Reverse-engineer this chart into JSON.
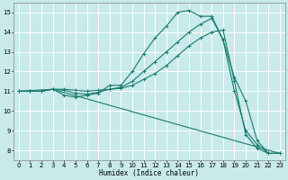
{
  "title": "",
  "xlabel": "Humidex (Indice chaleur)",
  "background_color": "#c8eaea",
  "grid_color": "#ffffff",
  "line_color": "#1a7a6e",
  "xlim": [
    -0.5,
    23.5
  ],
  "ylim": [
    7.5,
    15.5
  ],
  "xticks": [
    0,
    1,
    2,
    3,
    4,
    5,
    6,
    7,
    8,
    9,
    10,
    11,
    12,
    13,
    14,
    15,
    16,
    17,
    18,
    19,
    20,
    21,
    22,
    23
  ],
  "yticks": [
    8,
    9,
    10,
    11,
    12,
    13,
    14,
    15
  ],
  "series": [
    {
      "x": [
        0,
        1,
        2,
        3,
        4,
        5,
        6,
        7,
        8,
        9,
        10,
        11,
        12,
        13,
        14,
        15,
        16,
        17,
        18,
        19,
        20,
        21,
        22,
        23
      ],
      "y": [
        11,
        11,
        11,
        11.1,
        10.8,
        10.7,
        10.8,
        10.9,
        11.3,
        11.3,
        12.0,
        12.9,
        13.7,
        14.3,
        15.0,
        15.1,
        14.8,
        14.8,
        13.6,
        11.7,
        10.5,
        8.5,
        7.85,
        7.85
      ]
    },
    {
      "x": [
        0,
        1,
        2,
        3,
        4,
        5,
        6,
        7,
        8,
        9,
        10,
        11,
        12,
        13,
        14,
        15,
        16,
        17,
        18,
        19,
        20,
        21,
        22,
        23
      ],
      "y": [
        11,
        11,
        11,
        11.1,
        11.05,
        10.9,
        10.85,
        10.95,
        11.1,
        11.2,
        11.5,
        12.0,
        12.5,
        13.0,
        13.5,
        14.0,
        14.4,
        14.7,
        13.6,
        11.0,
        9.0,
        8.3,
        7.85,
        7.85
      ]
    },
    {
      "x": [
        0,
        1,
        2,
        3,
        4,
        5,
        6,
        7,
        8,
        9,
        10,
        11,
        12,
        13,
        14,
        15,
        16,
        17,
        18,
        19,
        20,
        21,
        22,
        23
      ],
      "y": [
        11,
        11,
        11,
        11.1,
        11.1,
        11.05,
        11.0,
        11.05,
        11.1,
        11.15,
        11.3,
        11.6,
        11.9,
        12.3,
        12.8,
        13.3,
        13.7,
        14.0,
        14.1,
        11.5,
        8.8,
        8.1,
        7.85,
        7.85
      ]
    },
    {
      "x": [
        0,
        3,
        23
      ],
      "y": [
        11,
        11.1,
        7.85
      ]
    }
  ]
}
